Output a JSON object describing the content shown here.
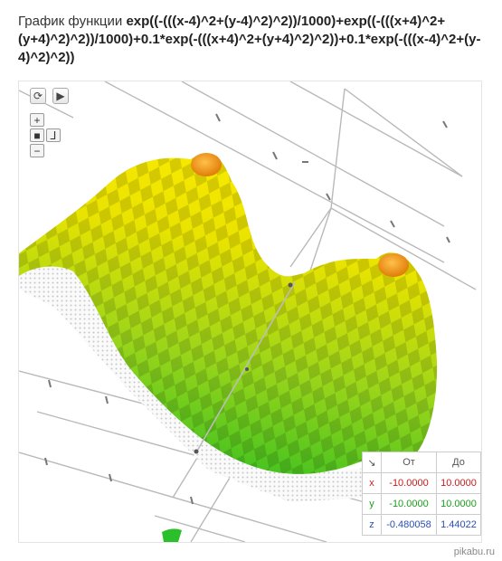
{
  "title": {
    "prefix": "График функции ",
    "formula": "exp((-(((x-4)^2+(y-4)^2)^2))/1000)+exp((-(((x+4)^2+(y+4)^2)^2))/1000)+0.1*exp(-(((x+4)^2+(y+4)^2)^2))+0.1*exp(-(((x-4)^2+(y-4)^2)^2))"
  },
  "controls": {
    "reset_icon": "refresh-icon",
    "play_icon": "play-icon",
    "zoom_in": "+",
    "zoom_out": "−",
    "camera_icon": "camera-icon",
    "axes_icon": "axes-icon"
  },
  "range_table": {
    "corner": "↘",
    "col_from": "От",
    "col_to": "До",
    "rows": [
      {
        "axis": "x",
        "from": "-10.0000",
        "to": "10.0000",
        "color": "#cc1a1a"
      },
      {
        "axis": "y",
        "from": "-10.0000",
        "to": "10.0000",
        "color": "#1a9e1a"
      },
      {
        "axis": "z",
        "from": "-0.480058",
        "to": "1.44022",
        "color": "#2a4fb5"
      }
    ]
  },
  "watermark": "pikabu.ru",
  "colors": {
    "surface_low": "#2ec12e",
    "surface_high": "#f2e600",
    "peak": "#f39a1a"
  }
}
